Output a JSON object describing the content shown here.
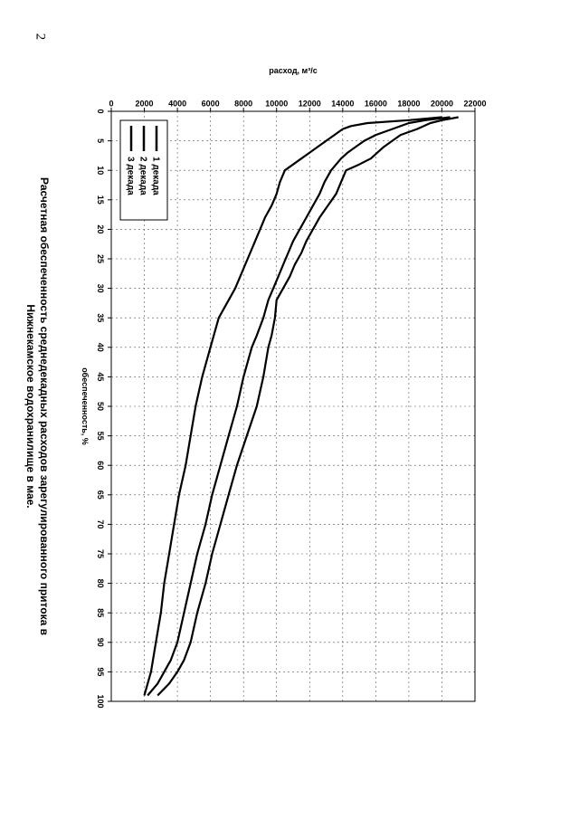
{
  "page_number": "2",
  "chart_data": {
    "type": "line",
    "title": "Расчетная обеспеченность среднедекадных расходов зарегулированного притока в Нижнекамское водохранилище в мае.",
    "title_lines": [
      "Расчетная обеспеченность среднедекадных расходов зарегулированного притока в",
      "Нижнекамское водохранилище в мае."
    ],
    "xlabel": "обеспеченность, %",
    "ylabel": "расход, м³/с",
    "xlim": [
      0,
      100
    ],
    "ylim": [
      0,
      22000
    ],
    "x_ticks": [
      0,
      5,
      10,
      15,
      20,
      25,
      30,
      35,
      40,
      45,
      50,
      55,
      60,
      65,
      70,
      75,
      80,
      85,
      90,
      95,
      100
    ],
    "y_ticks": [
      0,
      2000,
      4000,
      6000,
      8000,
      10000,
      12000,
      14000,
      16000,
      18000,
      20000,
      22000
    ],
    "grid": true,
    "legend_position": "top-right",
    "series": [
      {
        "name": "1 декада",
        "x": [
          1,
          1.5,
          2,
          3,
          4,
          5,
          6,
          7,
          8,
          9,
          10,
          12,
          14,
          16,
          18,
          20,
          22,
          24,
          26,
          28,
          30,
          32,
          35,
          38,
          40,
          45,
          50,
          55,
          60,
          65,
          70,
          75,
          80,
          85,
          90,
          93,
          95,
          97,
          99
        ],
        "values": [
          21000,
          20000,
          19300,
          18500,
          17500,
          17000,
          16500,
          16100,
          15700,
          15000,
          14200,
          13900,
          13600,
          13100,
          12600,
          12200,
          11800,
          11500,
          11100,
          10800,
          10400,
          10000,
          9900,
          9700,
          9500,
          9200,
          8800,
          8200,
          7600,
          7100,
          6600,
          6100,
          5700,
          5200,
          4800,
          4400,
          4000,
          3500,
          2800
        ]
      },
      {
        "name": "2 декада",
        "x": [
          1,
          1.5,
          2,
          3,
          4,
          5,
          6,
          7,
          8,
          9,
          10,
          12,
          14,
          16,
          18,
          20,
          22,
          24,
          26,
          28,
          30,
          32,
          35,
          38,
          40,
          45,
          50,
          55,
          60,
          65,
          70,
          75,
          80,
          85,
          90,
          93,
          95,
          97,
          99
        ],
        "values": [
          20500,
          19000,
          18000,
          17000,
          16000,
          15300,
          14800,
          14300,
          13900,
          13600,
          13300,
          12900,
          12600,
          12200,
          11800,
          11400,
          11000,
          10700,
          10400,
          10100,
          9800,
          9500,
          9200,
          8800,
          8500,
          8000,
          7600,
          7100,
          6600,
          6100,
          5700,
          5200,
          4800,
          4400,
          4000,
          3600,
          3200,
          2800,
          2200
        ]
      },
      {
        "name": "3 декада",
        "x": [
          1,
          1.5,
          2,
          2.5,
          3,
          4,
          5,
          6,
          7,
          8,
          9,
          10,
          12,
          14,
          16,
          18,
          20,
          22,
          24,
          26,
          28,
          30,
          35,
          40,
          45,
          50,
          55,
          60,
          65,
          70,
          75,
          80,
          85,
          90,
          95,
          99
        ],
        "values": [
          20000,
          18000,
          15500,
          14500,
          14000,
          13500,
          13000,
          12500,
          12000,
          11500,
          11000,
          10500,
          10200,
          10000,
          9700,
          9300,
          9000,
          8700,
          8400,
          8100,
          7800,
          7500,
          6500,
          6000,
          5500,
          5100,
          4800,
          4500,
          4100,
          3800,
          3500,
          3200,
          3000,
          2700,
          2400,
          2000
        ]
      }
    ]
  }
}
